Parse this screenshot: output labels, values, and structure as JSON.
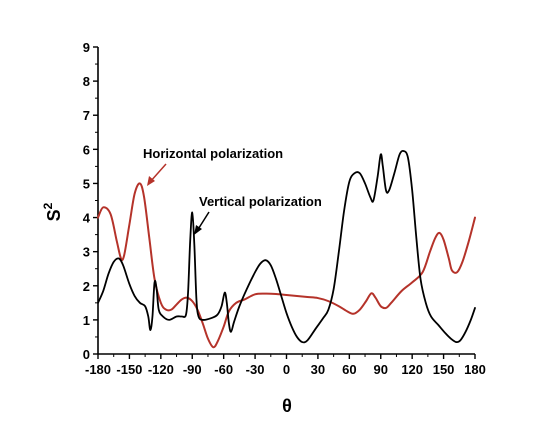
{
  "chart_data": {
    "type": "line",
    "title": "",
    "xlabel": "θ",
    "ylabel": "S",
    "ylabel_sup": "2",
    "xlim": [
      -180,
      180
    ],
    "ylim": [
      0,
      9
    ],
    "x_ticks": [
      -180,
      -150,
      -120,
      -90,
      -60,
      -30,
      0,
      30,
      60,
      90,
      120,
      150,
      180
    ],
    "y_ticks": [
      0,
      1,
      2,
      3,
      4,
      5,
      6,
      7,
      8,
      9
    ],
    "grid": false,
    "series": [
      {
        "name": "Horizontal polarization",
        "color": "#b5332a",
        "points": [
          [
            -180,
            4.0
          ],
          [
            -175,
            4.3
          ],
          [
            -168,
            4.1
          ],
          [
            -162,
            3.3
          ],
          [
            -158,
            2.8
          ],
          [
            -155,
            2.9
          ],
          [
            -150,
            3.8
          ],
          [
            -145,
            4.7
          ],
          [
            -140,
            5.0
          ],
          [
            -136,
            4.6
          ],
          [
            -131,
            3.4
          ],
          [
            -126,
            2.2
          ],
          [
            -120,
            1.5
          ],
          [
            -115,
            1.3
          ],
          [
            -110,
            1.3
          ],
          [
            -105,
            1.45
          ],
          [
            -100,
            1.6
          ],
          [
            -95,
            1.65
          ],
          [
            -90,
            1.55
          ],
          [
            -85,
            1.3
          ],
          [
            -80,
            0.9
          ],
          [
            -75,
            0.45
          ],
          [
            -70,
            0.2
          ],
          [
            -66,
            0.35
          ],
          [
            -60,
            0.8
          ],
          [
            -55,
            1.25
          ],
          [
            -48,
            1.5
          ],
          [
            -40,
            1.6
          ],
          [
            -30,
            1.75
          ],
          [
            -20,
            1.77
          ],
          [
            -10,
            1.76
          ],
          [
            0,
            1.73
          ],
          [
            10,
            1.7
          ],
          [
            20,
            1.67
          ],
          [
            30,
            1.64
          ],
          [
            40,
            1.55
          ],
          [
            50,
            1.4
          ],
          [
            58,
            1.25
          ],
          [
            64,
            1.18
          ],
          [
            70,
            1.3
          ],
          [
            76,
            1.55
          ],
          [
            81,
            1.78
          ],
          [
            85,
            1.65
          ],
          [
            90,
            1.4
          ],
          [
            95,
            1.35
          ],
          [
            100,
            1.5
          ],
          [
            110,
            1.85
          ],
          [
            120,
            2.1
          ],
          [
            130,
            2.4
          ],
          [
            137,
            3.0
          ],
          [
            142,
            3.4
          ],
          [
            146,
            3.55
          ],
          [
            150,
            3.35
          ],
          [
            155,
            2.8
          ],
          [
            158,
            2.45
          ],
          [
            163,
            2.4
          ],
          [
            168,
            2.7
          ],
          [
            174,
            3.3
          ],
          [
            180,
            4.0
          ]
        ]
      },
      {
        "name": "Vertical polarization",
        "color": "#000000",
        "points": [
          [
            -180,
            1.5
          ],
          [
            -175,
            1.85
          ],
          [
            -170,
            2.35
          ],
          [
            -165,
            2.7
          ],
          [
            -160,
            2.8
          ],
          [
            -156,
            2.6
          ],
          [
            -150,
            2.05
          ],
          [
            -145,
            1.7
          ],
          [
            -140,
            1.5
          ],
          [
            -135,
            1.4
          ],
          [
            -132,
            1.1
          ],
          [
            -130,
            0.7
          ],
          [
            -128,
            1.1
          ],
          [
            -126,
            2.1
          ],
          [
            -124,
            1.9
          ],
          [
            -122,
            1.3
          ],
          [
            -118,
            1.1
          ],
          [
            -112,
            1.0
          ],
          [
            -105,
            1.1
          ],
          [
            -100,
            1.1
          ],
          [
            -96,
            1.15
          ],
          [
            -94,
            1.8
          ],
          [
            -92,
            3.3
          ],
          [
            -90,
            4.15
          ],
          [
            -88,
            3.2
          ],
          [
            -86,
            1.6
          ],
          [
            -84,
            1.1
          ],
          [
            -80,
            1.0
          ],
          [
            -72,
            1.05
          ],
          [
            -66,
            1.15
          ],
          [
            -62,
            1.4
          ],
          [
            -59,
            1.8
          ],
          [
            -57,
            1.5
          ],
          [
            -55,
            0.9
          ],
          [
            -53,
            0.65
          ],
          [
            -50,
            0.95
          ],
          [
            -45,
            1.4
          ],
          [
            -38,
            1.9
          ],
          [
            -30,
            2.4
          ],
          [
            -25,
            2.65
          ],
          [
            -20,
            2.75
          ],
          [
            -15,
            2.6
          ],
          [
            -10,
            2.2
          ],
          [
            -5,
            1.7
          ],
          [
            0,
            1.2
          ],
          [
            5,
            0.8
          ],
          [
            10,
            0.5
          ],
          [
            15,
            0.35
          ],
          [
            20,
            0.4
          ],
          [
            28,
            0.75
          ],
          [
            35,
            1.05
          ],
          [
            40,
            1.3
          ],
          [
            45,
            1.9
          ],
          [
            50,
            3.0
          ],
          [
            55,
            4.2
          ],
          [
            60,
            5.05
          ],
          [
            65,
            5.3
          ],
          [
            70,
            5.3
          ],
          [
            75,
            5.0
          ],
          [
            80,
            4.6
          ],
          [
            83,
            4.5
          ],
          [
            87,
            5.2
          ],
          [
            90,
            5.85
          ],
          [
            92,
            5.5
          ],
          [
            95,
            4.8
          ],
          [
            98,
            4.8
          ],
          [
            103,
            5.3
          ],
          [
            108,
            5.85
          ],
          [
            112,
            5.95
          ],
          [
            116,
            5.75
          ],
          [
            120,
            4.8
          ],
          [
            124,
            3.4
          ],
          [
            128,
            2.2
          ],
          [
            133,
            1.5
          ],
          [
            138,
            1.1
          ],
          [
            145,
            0.85
          ],
          [
            152,
            0.6
          ],
          [
            157,
            0.45
          ],
          [
            162,
            0.35
          ],
          [
            166,
            0.4
          ],
          [
            171,
            0.65
          ],
          [
            176,
            1.0
          ],
          [
            180,
            1.35
          ]
        ]
      }
    ],
    "annotations": [
      {
        "text": "Horizontal polarization",
        "series": "Horizontal polarization"
      },
      {
        "text": "Vertical polarization",
        "series": "Vertical polarization"
      }
    ]
  }
}
